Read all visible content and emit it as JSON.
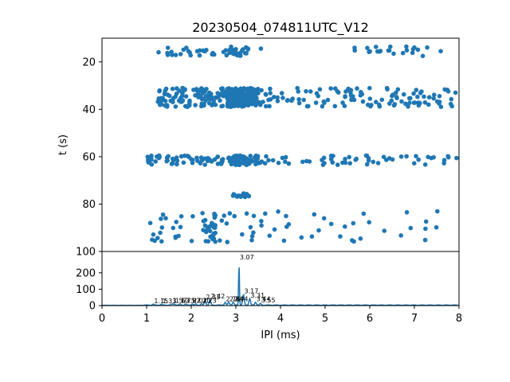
{
  "chart_data": [
    {
      "type": "scatter",
      "title": "20230504_074811UTC_V12",
      "xlabel": "",
      "ylabel": "t (s)",
      "xlim": [
        0,
        8
      ],
      "ylim": [
        100,
        10
      ],
      "y_inverted": true,
      "yticks": [
        20,
        40,
        60,
        80,
        100
      ],
      "color": "#1f77b4",
      "grid": false,
      "groups": [
        {
          "t_range": [
            13.5,
            17.5
          ],
          "x_clusters": [
            [
              1.25,
              3.6
            ],
            [
              5.6,
              7.6
            ]
          ],
          "count": 75,
          "core": [
            2.9,
            3.25
          ]
        },
        {
          "t_range": [
            31,
            39
          ],
          "x_clusters": [
            [
              1.25,
              3.7
            ],
            [
              3.7,
              8.0
            ]
          ],
          "count": 420,
          "core": [
            2.8,
            3.4
          ]
        },
        {
          "t_range": [
            59.5,
            63.5
          ],
          "x_clusters": [
            [
              1.0,
              3.6
            ],
            [
              3.6,
              8.0
            ]
          ],
          "count": 200,
          "core": [
            2.9,
            3.3
          ]
        },
        {
          "t_range": [
            75.5,
            77
          ],
          "x_clusters": [
            [
              2.9,
              3.3
            ]
          ],
          "count": 14,
          "core": [
            2.95,
            3.25
          ]
        },
        {
          "t_range": [
            83,
            96
          ],
          "x_clusters": [
            [
              1.0,
              3.7
            ],
            [
              3.7,
              7.6
            ]
          ],
          "count": 100,
          "core": [
            2.25,
            2.55
          ]
        }
      ]
    },
    {
      "type": "line",
      "xlabel": "IPI (ms)",
      "ylabel": "",
      "xlim": [
        0,
        8
      ],
      "ylim": [
        0,
        330
      ],
      "xticks": [
        0,
        1,
        2,
        3,
        4,
        5,
        6,
        7,
        8
      ],
      "yticks": [
        0,
        100,
        200
      ],
      "color": "#1f77b4",
      "peaks": [
        {
          "x": 1.15,
          "y": 6,
          "label": "1.15"
        },
        {
          "x": 1.33,
          "y": 6,
          "label": "1.33"
        },
        {
          "x": 1.57,
          "y": 7,
          "label": "1.57"
        },
        {
          "x": 1.62,
          "y": 7,
          "label": "1.62"
        },
        {
          "x": 1.75,
          "y": 7,
          "label": "1.75"
        },
        {
          "x": 1.87,
          "y": 7,
          "label": "1.87"
        },
        {
          "x": 2.02,
          "y": 7,
          "label": "2.02"
        },
        {
          "x": 2.1,
          "y": 7,
          "label": "2.10"
        },
        {
          "x": 2.23,
          "y": 8,
          "label": "2.23"
        },
        {
          "x": 2.31,
          "y": 30,
          "label": "2.31"
        },
        {
          "x": 2.42,
          "y": 33,
          "label": "2.42"
        },
        {
          "x": 2.76,
          "y": 18,
          "label": "2.76"
        },
        {
          "x": 2.84,
          "y": 18,
          "label": "2.84"
        },
        {
          "x": 2.94,
          "y": 18,
          "label": "2.94"
        },
        {
          "x": 3.07,
          "y": 275,
          "label": "3.07"
        },
        {
          "x": 3.17,
          "y": 65,
          "label": "3.17"
        },
        {
          "x": 3.31,
          "y": 40,
          "label": "3.31"
        },
        {
          "x": 3.44,
          "y": 18,
          "label": "3.44"
        },
        {
          "x": 3.55,
          "y": 10,
          "label": "3.55"
        }
      ]
    }
  ]
}
